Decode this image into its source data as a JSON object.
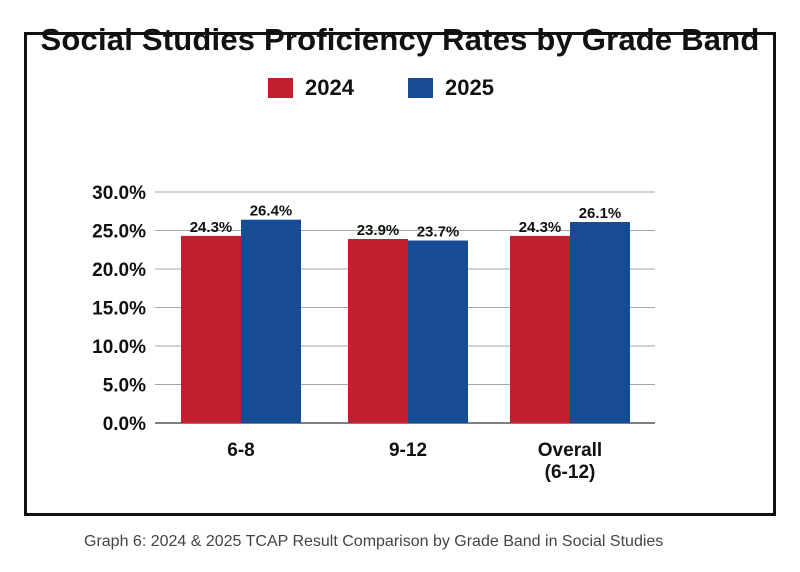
{
  "caption": "Graph 6: 2024 & 2025 TCAP Result Comparison by Grade Band in Social Studies",
  "colors": {
    "series_2024": "#c11f2f",
    "series_2025": "#154c94",
    "grid": "#a6a6a6",
    "text": "#111111"
  },
  "chart_data": {
    "type": "bar",
    "title": "Social Studies Proficiency Rates by Grade Band",
    "xlabel": "",
    "ylabel": "",
    "categories": [
      [
        "6-8"
      ],
      [
        "9-12"
      ],
      [
        "Overall",
        "(6-12)"
      ]
    ],
    "series": [
      {
        "name": "2024",
        "values": [
          24.3,
          23.9,
          24.3
        ],
        "labels": [
          "24.3%",
          "23.9%",
          "24.3%"
        ]
      },
      {
        "name": "2025",
        "values": [
          26.4,
          23.7,
          26.1
        ],
        "labels": [
          "26.4%",
          "23.7%",
          "26.1%"
        ]
      }
    ],
    "ylim": [
      0,
      30
    ],
    "yticks": [
      "0.0%",
      "5.0%",
      "10.0%",
      "15.0%",
      "20.0%",
      "25.0%",
      "30.0%"
    ],
    "grid": true,
    "legend_position": "top-center"
  }
}
